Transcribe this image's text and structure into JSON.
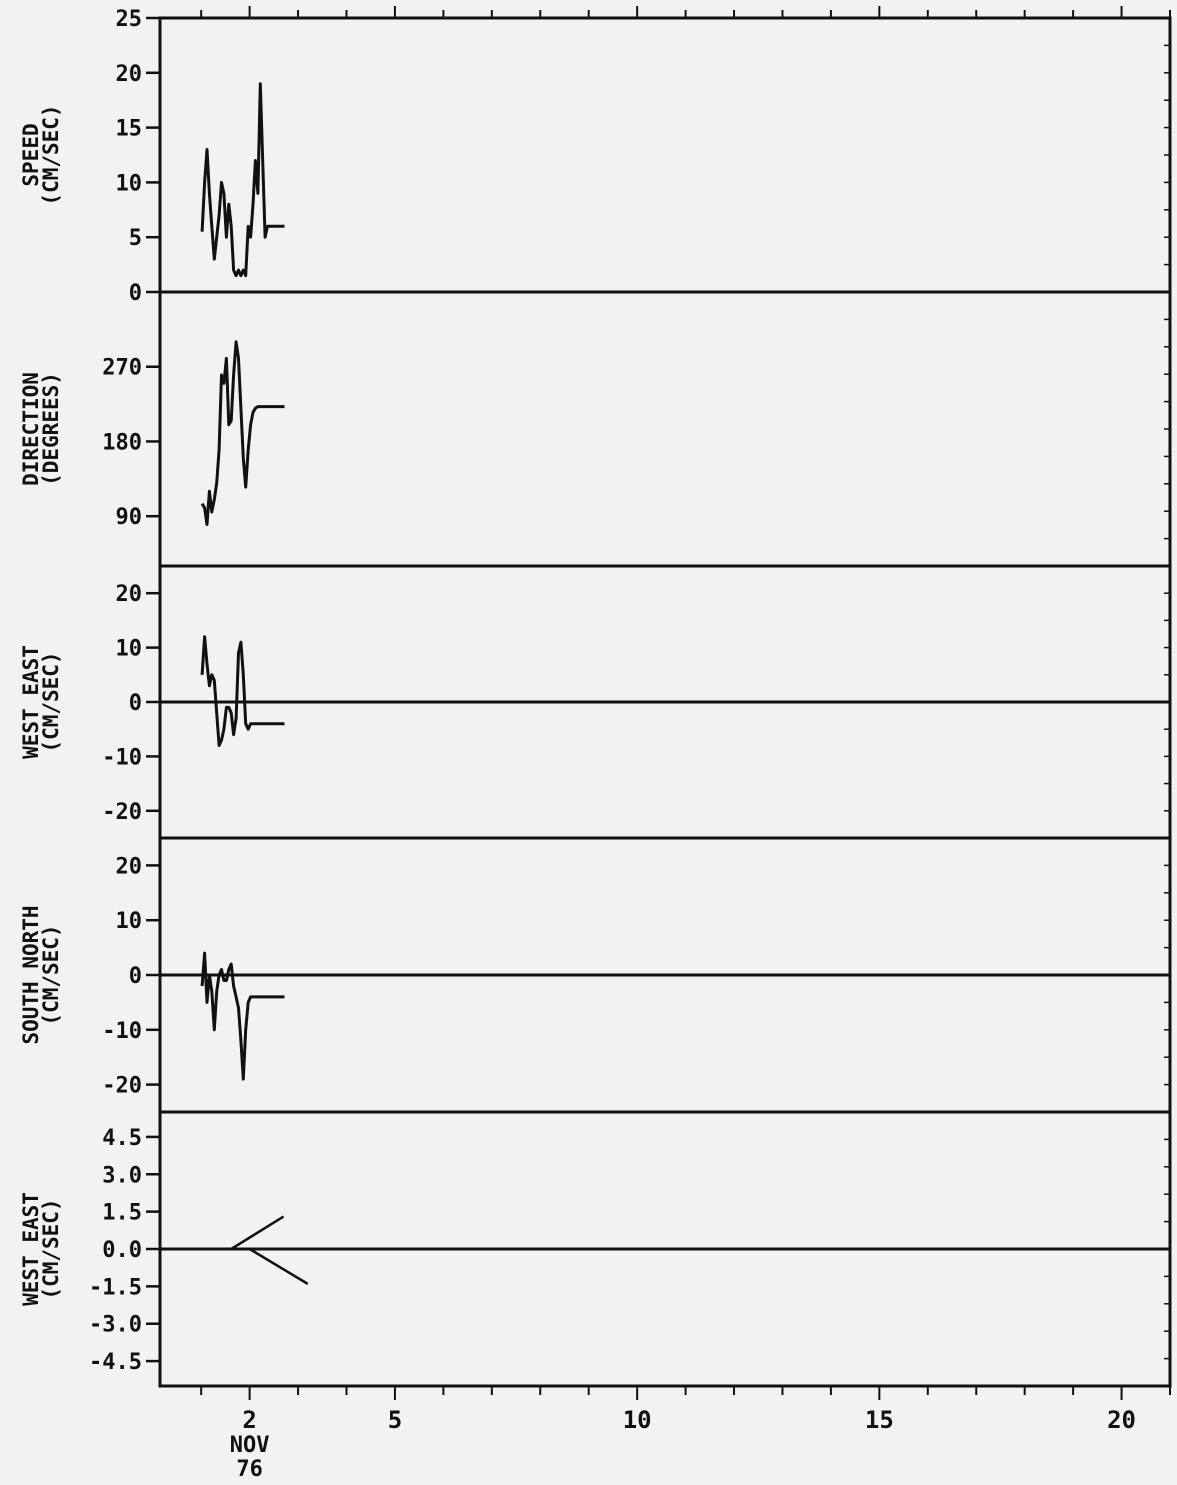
{
  "chart_data": [
    {
      "type": "line",
      "ylabel": [
        "SPEED",
        "(CM/SEC)"
      ],
      "ylim": [
        0,
        25
      ],
      "yticks": [
        "0",
        "5",
        "10",
        "15",
        "20",
        "25"
      ],
      "ytick_values": [
        0,
        5,
        10,
        15,
        20,
        25
      ],
      "zero_line": false,
      "series": [
        {
          "x": [
            1.02,
            1.07,
            1.12,
            1.17,
            1.22,
            1.27,
            1.32,
            1.37,
            1.42,
            1.47,
            1.52,
            1.57,
            1.62,
            1.67,
            1.72,
            1.77,
            1.82,
            1.87,
            1.92,
            1.97,
            2.02,
            2.07,
            2.12,
            2.17,
            2.22,
            2.27,
            2.32,
            2.37,
            2.42,
            2.47,
            2.52,
            2.57,
            2.62,
            2.67,
            2.72
          ],
          "y": [
            5.5,
            10,
            13,
            9,
            6,
            3,
            5,
            7,
            10,
            9,
            5,
            8,
            6,
            2,
            1.5,
            2,
            1.5,
            2,
            1.5,
            6,
            5,
            8,
            12,
            9,
            19,
            12,
            5,
            6,
            6,
            6,
            6,
            6,
            6,
            6,
            6
          ]
        }
      ]
    },
    {
      "type": "line",
      "ylabel": [
        "DIRECTION",
        "(DEGREES)"
      ],
      "ylim": [
        30,
        360
      ],
      "yticks": [
        "90",
        "180",
        "270"
      ],
      "ytick_values": [
        90,
        180,
        270
      ],
      "zero_line": false,
      "series": [
        {
          "x": [
            1.02,
            1.07,
            1.12,
            1.17,
            1.22,
            1.27,
            1.32,
            1.37,
            1.42,
            1.47,
            1.52,
            1.57,
            1.62,
            1.67,
            1.72,
            1.77,
            1.82,
            1.87,
            1.92,
            1.97,
            2.02,
            2.07,
            2.12,
            2.17,
            2.22,
            2.27,
            2.32,
            2.37,
            2.42,
            2.47,
            2.52,
            2.57,
            2.62,
            2.67,
            2.72
          ],
          "y": [
            105,
            100,
            80,
            120,
            95,
            110,
            130,
            170,
            260,
            250,
            280,
            200,
            205,
            260,
            300,
            280,
            220,
            160,
            125,
            170,
            200,
            215,
            220,
            222,
            222,
            222,
            222,
            222,
            222,
            222,
            222,
            222,
            222,
            222,
            222
          ]
        }
      ]
    },
    {
      "type": "line",
      "ylabel": [
        "WEST  EAST",
        "(CM/SEC)"
      ],
      "ylim": [
        -25,
        25
      ],
      "yticks": [
        "-20",
        "-10",
        "0",
        "10",
        "20"
      ],
      "ytick_values": [
        -20,
        -10,
        0,
        10,
        20
      ],
      "zero_line": true,
      "series": [
        {
          "x": [
            1.02,
            1.07,
            1.12,
            1.17,
            1.22,
            1.27,
            1.32,
            1.37,
            1.42,
            1.47,
            1.52,
            1.57,
            1.62,
            1.67,
            1.72,
            1.77,
            1.82,
            1.87,
            1.92,
            1.97,
            2.02,
            2.07,
            2.12,
            2.17,
            2.22,
            2.27,
            2.32,
            2.37,
            2.42,
            2.47,
            2.52,
            2.57,
            2.62,
            2.67,
            2.72
          ],
          "y": [
            5,
            12,
            7,
            3,
            5,
            4,
            -2,
            -8,
            -7,
            -5,
            -1,
            -1,
            -2,
            -6,
            -3,
            9,
            11,
            5,
            -4,
            -5,
            -4,
            -4,
            -4,
            -4,
            -4,
            -4,
            -4,
            -4,
            -4,
            -4,
            -4,
            -4,
            -4,
            -4,
            -4
          ]
        }
      ]
    },
    {
      "type": "line",
      "ylabel": [
        "SOUTH  NORTH",
        "(CM/SEC)"
      ],
      "ylim": [
        -25,
        25
      ],
      "yticks": [
        "-20",
        "-10",
        "0",
        "10",
        "20"
      ],
      "ytick_values": [
        -20,
        -10,
        0,
        10,
        20
      ],
      "zero_line": true,
      "series": [
        {
          "x": [
            1.02,
            1.07,
            1.12,
            1.17,
            1.22,
            1.27,
            1.32,
            1.37,
            1.42,
            1.47,
            1.52,
            1.57,
            1.62,
            1.67,
            1.72,
            1.77,
            1.82,
            1.87,
            1.92,
            1.97,
            2.02,
            2.07,
            2.12,
            2.17,
            2.22,
            2.27,
            2.32,
            2.37,
            2.42,
            2.47,
            2.52,
            2.57,
            2.62,
            2.67,
            2.72
          ],
          "y": [
            -2,
            4,
            -5,
            0,
            -3,
            -10,
            -3,
            0,
            1,
            -1,
            -1,
            1,
            2,
            -2,
            -4,
            -6,
            -12,
            -19,
            -10,
            -5,
            -4,
            -4,
            -4,
            -4,
            -4,
            -4,
            -4,
            -4,
            -4,
            -4,
            -4,
            -4,
            -4,
            -4,
            -4
          ]
        }
      ]
    },
    {
      "type": "vector",
      "ylabel": [
        "WEST  EAST",
        "(CM/SEC)"
      ],
      "ylim": [
        -5.5,
        5.5
      ],
      "yticks": [
        "-4.5",
        "-3.0",
        "-1.5",
        "0.0",
        "1.5",
        "3.0",
        "4.5"
      ],
      "ytick_values": [
        -4.5,
        -3,
        -1.5,
        0,
        1.5,
        3,
        4.5
      ],
      "zero_line": true,
      "vectors": [
        {
          "x": [
            1.62,
            2.7
          ],
          "y": [
            0.0,
            1.3
          ]
        },
        {
          "x": [
            2.0,
            3.2
          ],
          "y": [
            0.0,
            -1.4
          ]
        }
      ]
    }
  ],
  "x_axis": {
    "min": 0.15,
    "max": 21.0,
    "ticks": [
      1,
      2,
      3,
      4,
      5,
      6,
      7,
      8,
      9,
      10,
      11,
      12,
      13,
      14,
      15,
      16,
      17,
      18,
      19,
      20,
      21
    ],
    "labels": [
      {
        "value": 2,
        "text": "2"
      },
      {
        "value": 5,
        "text": "5"
      },
      {
        "value": 10,
        "text": "10"
      },
      {
        "value": 15,
        "text": "15"
      },
      {
        "value": 20,
        "text": "20"
      }
    ],
    "month": "NOV",
    "year": "76"
  }
}
